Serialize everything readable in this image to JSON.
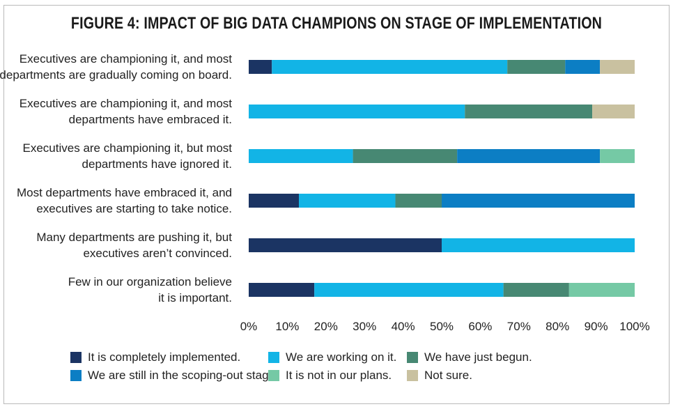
{
  "chart_data": {
    "type": "bar",
    "orientation": "horizontal",
    "stacked": true,
    "title": "FIGURE 4: IMPACT OF BIG DATA CHAMPIONS ON STAGE OF IMPLEMENTATION",
    "categories": [
      [
        "Executives are championing it, and most",
        "departments are gradually coming on board."
      ],
      [
        "Executives are championing it, and most",
        "departments have embraced it."
      ],
      [
        "Executives are championing it, but most",
        "departments have ignored it."
      ],
      [
        "Most departments have embraced it, and",
        "executives are starting to take notice."
      ],
      [
        "Many departments are pushing it, but",
        "executives aren’t convinced."
      ],
      [
        "Few in our organization believe",
        "it is important."
      ]
    ],
    "series": [
      {
        "name": "It is completely implemented.",
        "color": "#1b3463",
        "values": [
          6,
          0,
          0,
          13,
          50,
          17
        ]
      },
      {
        "name": "We are working on it.",
        "color": "#12b4e6",
        "values": [
          61,
          56,
          27,
          25,
          50,
          49
        ]
      },
      {
        "name": "We have just begun.",
        "color": "#478873",
        "values": [
          15,
          33,
          27,
          12,
          0,
          17
        ]
      },
      {
        "name": "We are still in the scoping-out stage.",
        "color": "#0c7ec4",
        "values": [
          9,
          0,
          37,
          50,
          0,
          0
        ]
      },
      {
        "name": "It is not in our plans.",
        "color": "#75c9a5",
        "values": [
          0,
          0,
          9,
          0,
          0,
          17
        ]
      },
      {
        "name": "Not sure.",
        "color": "#c9c1a0",
        "values": [
          9,
          11,
          0,
          0,
          0,
          0
        ]
      }
    ],
    "x_ticks": [
      "0%",
      "10%",
      "20%",
      "30%",
      "40%",
      "50%",
      "60%",
      "70%",
      "80%",
      "90%",
      "100%"
    ],
    "xlim": [
      0,
      100
    ],
    "grid": false,
    "legend_position": "bottom"
  }
}
